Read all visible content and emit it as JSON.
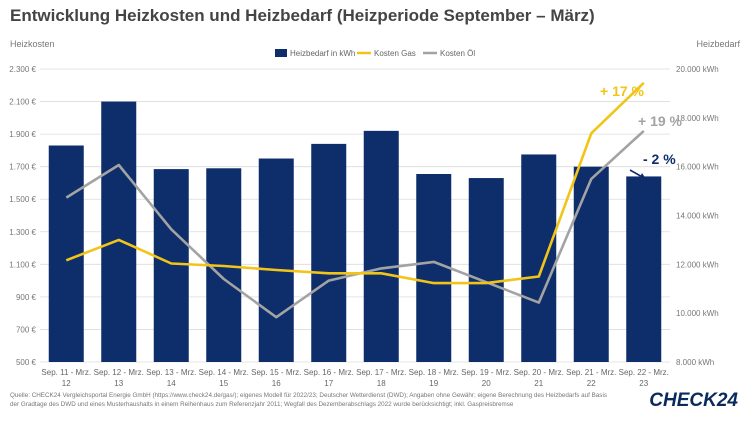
{
  "chart_data": {
    "type": "bar",
    "title": "Entwicklung Heizkosten und Heizbedarf (Heizperiode September – März)",
    "ylabel_left": "Heizkosten",
    "ylabel_right": "Heizbedarf",
    "categories": [
      [
        "Sep. 11 - Mrz.",
        "12"
      ],
      [
        "Sep. 12 - Mrz.",
        "13"
      ],
      [
        "Sep. 13 - Mrz.",
        "14"
      ],
      [
        "Sep. 14 - Mrz.",
        "15"
      ],
      [
        "Sep. 15 - Mrz.",
        "16"
      ],
      [
        "Sep. 16 - Mrz.",
        "17"
      ],
      [
        "Sep. 17 - Mrz.",
        "18"
      ],
      [
        "Sep. 18 - Mrz.",
        "19"
      ],
      [
        "Sep. 19 - Mrz.",
        "20"
      ],
      [
        "Sep. 20 - Mrz.",
        "21"
      ],
      [
        "Sep. 21 - Mrz.",
        "22"
      ],
      [
        "Sep. 22 - Mrz.",
        "23"
      ]
    ],
    "left_axis": {
      "min": 500,
      "max": 2300,
      "step": 200,
      "ticks": [
        "500 €",
        "700 €",
        "900 €",
        "1.100 €",
        "1.300 €",
        "1.500 €",
        "1.700 €",
        "1.900 €",
        "2.100 €",
        "2.300 €"
      ]
    },
    "right_axis": {
      "min": 8000,
      "max": 20000,
      "step": 2000,
      "ticks": [
        "8.000 kWh",
        "10.000 kWh",
        "12.000 kWh",
        "14.000 kWh",
        "16.000 kWh",
        "18.000 kWh",
        "20.000 kWh"
      ]
    },
    "series": [
      {
        "name": "Heizbedarf in kWh",
        "type": "bar",
        "axis": "left",
        "color": "#0d2d6b",
        "values": [
          1830,
          2100,
          1685,
          1690,
          1750,
          1840,
          1920,
          1655,
          1630,
          1775,
          1700,
          1640
        ]
      },
      {
        "name": "Kosten Gas",
        "type": "line",
        "axis": "left",
        "color": "#f2c418",
        "values": [
          1125,
          1250,
          1105,
          1090,
          1065,
          1045,
          1045,
          985,
          985,
          1025,
          1905,
          2215
        ]
      },
      {
        "name": "Kosten Öl",
        "type": "line",
        "axis": "left",
        "color": "#a3a3a3",
        "values": [
          1510,
          1710,
          1315,
          1010,
          775,
          1000,
          1075,
          1115,
          990,
          865,
          1625,
          1920
        ]
      }
    ],
    "annotations": [
      {
        "text": "+ 17 %",
        "color": "#f2c418"
      },
      {
        "text": "+ 19 %",
        "color": "#a3a3a3"
      },
      {
        "text": "- 2 %",
        "color": "#0d2d6b"
      }
    ],
    "legend_position": "top"
  },
  "footer": {
    "source_line1": "Quelle: CHECK24 Vergleichsportal Energie GmbH (https://www.check24.de/gas/); eigenes Modell für 2022/23; Deutscher Wetterdienst (DWD); Angaben ohne Gewähr; eigene Berechnung des Heizbedarfs auf Basis",
    "source_line2": "der Gradtage des DWD und eines Musterhaushalts in einem Reihenhaus zum Referenzjahr 2011; Wegfall des Dezemberabschlags 2022 wurde berücksichtigt; inkl. Gaspreisbremse",
    "brand": "CHECK24"
  }
}
